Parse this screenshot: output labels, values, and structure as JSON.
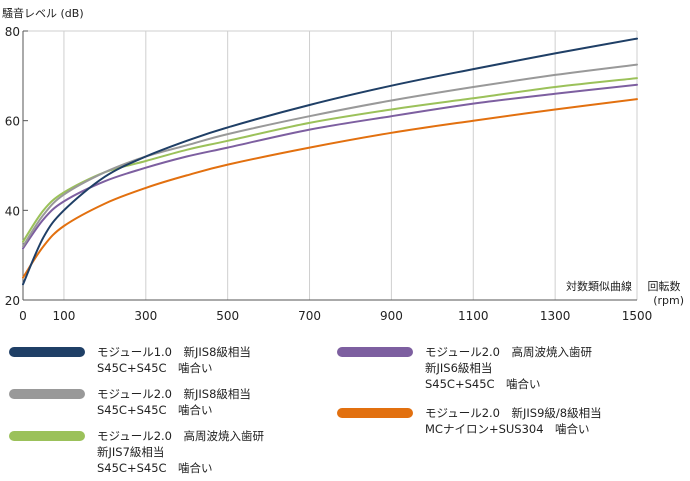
{
  "chart_data": {
    "type": "line",
    "ylabel": "騒音レベル (dB)",
    "xlabel": "回転数\n(rpm)",
    "annotation": "対数類似曲線",
    "xlim": [
      0,
      1500
    ],
    "ylim": [
      20,
      80
    ],
    "xticks": [
      0,
      100,
      300,
      500,
      700,
      900,
      1100,
      1300,
      1500
    ],
    "yticks": [
      20,
      40,
      60,
      80
    ],
    "grid": "vertical",
    "legend_position": "bottom",
    "series": [
      {
        "name": "モジュール1.0　新JIS8級相当\nS45C+S45C　噛合い",
        "color": "#1f3f66",
        "x": [
          0,
          50,
          100,
          200,
          300,
          400,
          500,
          700,
          900,
          1100,
          1300,
          1500
        ],
        "y": [
          23.5,
          34,
          40,
          47.5,
          52,
          55.5,
          58.5,
          63.5,
          67.8,
          71.5,
          75,
          78.3
        ]
      },
      {
        "name": "モジュール2.0　新JIS8級相当\nS45C+S45C　噛合い",
        "color": "#999999",
        "x": [
          0,
          50,
          100,
          200,
          300,
          400,
          500,
          700,
          900,
          1100,
          1300,
          1500
        ],
        "y": [
          32,
          39,
          43.5,
          48.5,
          52,
          54.5,
          57,
          61,
          64.5,
          67.5,
          70.2,
          72.5
        ]
      },
      {
        "name": "モジュール2.0　高周波焼入歯研\n新JIS7級相当\nS45C+S45C　噛合い",
        "color": "#9bc15a",
        "x": [
          0,
          50,
          100,
          200,
          300,
          400,
          500,
          700,
          900,
          1100,
          1300,
          1500
        ],
        "y": [
          33,
          40,
          44,
          48.5,
          51,
          53.5,
          55.5,
          59.5,
          62.5,
          65,
          67.5,
          69.5
        ]
      },
      {
        "name": "モジュール2.0　高周波焼入歯研\n新JIS6級相当\nS45C+S45C　噛合い",
        "color": "#7d5fa0",
        "x": [
          0,
          50,
          100,
          200,
          300,
          400,
          500,
          700,
          900,
          1100,
          1300,
          1500
        ],
        "y": [
          31.5,
          38,
          42,
          46.5,
          49.5,
          52,
          54,
          58,
          61,
          63.8,
          66,
          68
        ]
      },
      {
        "name": "モジュール2.0　新JIS9級/8級相当\nMCナイロン+SUS304　噛合い",
        "color": "#e2700f",
        "x": [
          0,
          50,
          100,
          200,
          300,
          400,
          500,
          700,
          900,
          1100,
          1300,
          1500
        ],
        "y": [
          25,
          32,
          36.5,
          41.5,
          45,
          47.8,
          50.2,
          54,
          57.3,
          60,
          62.5,
          64.8
        ]
      }
    ]
  }
}
